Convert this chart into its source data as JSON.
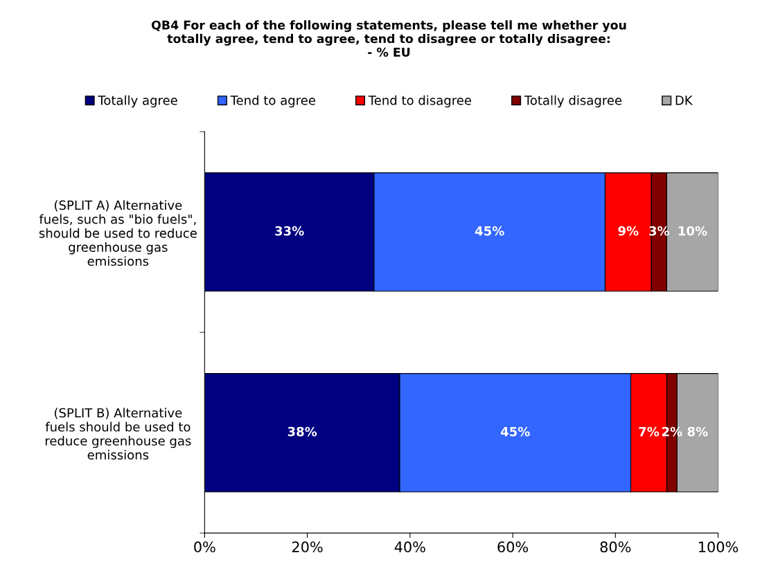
{
  "chart_data": {
    "type": "bar",
    "orientation": "horizontal",
    "stacked": true,
    "title": "QB4 For each of the following statements, please tell me whether you\ntotally agree, tend to agree, tend to disagree or totally disagree:\n- % EU",
    "categories": [
      "(SPLIT A) Alternative\nfuels, such as \"bio fuels\",\nshould be used to reduce\ngreenhouse gas\nemissions",
      "(SPLIT B) Alternative\nfuels should be used to\nreduce greenhouse gas\nemissions"
    ],
    "series": [
      {
        "name": "Totally agree",
        "color": "#000080",
        "values": [
          33,
          38
        ],
        "value_labels": [
          "33%",
          "38%"
        ]
      },
      {
        "name": "Tend to agree",
        "color": "#3366ff",
        "values": [
          45,
          45
        ],
        "value_labels": [
          "45%",
          "45%"
        ]
      },
      {
        "name": "Tend to disagree",
        "color": "#ff0000",
        "values": [
          9,
          7
        ],
        "value_labels": [
          "9%",
          "7%"
        ]
      },
      {
        "name": "Totally disagree",
        "color": "#800000",
        "values": [
          3,
          2
        ],
        "value_labels": [
          "3%",
          "2%"
        ]
      },
      {
        "name": "DK",
        "color": "#a6a6a6",
        "values": [
          10,
          8
        ],
        "value_labels": [
          "10%",
          "8%"
        ]
      }
    ],
    "xlim": [
      0,
      100
    ],
    "xticks": [
      {
        "value": 0,
        "label": "0%"
      },
      {
        "value": 20,
        "label": "20%"
      },
      {
        "value": 40,
        "label": "40%"
      },
      {
        "value": 60,
        "label": "60%"
      },
      {
        "value": 80,
        "label": "80%"
      },
      {
        "value": 100,
        "label": "100%"
      }
    ],
    "legend": "top",
    "grid": false
  }
}
